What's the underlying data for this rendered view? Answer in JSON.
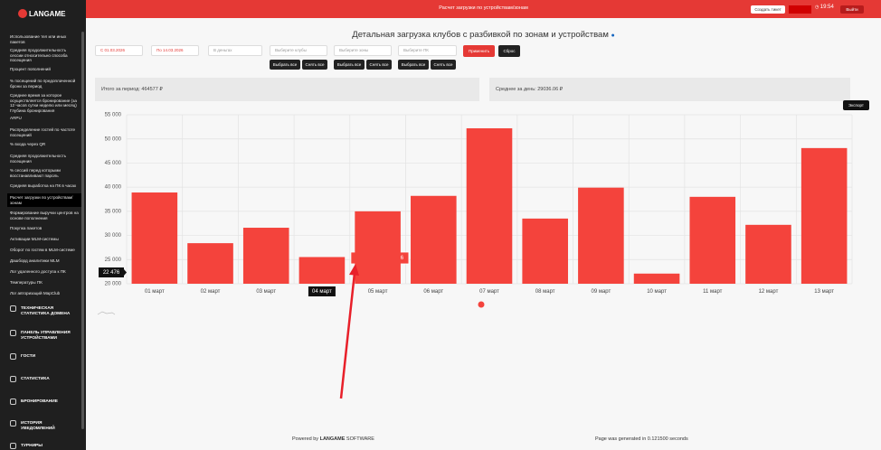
{
  "sidebar": {
    "brand": "LANGAME",
    "reports": [
      "Использование тел или иных пакетов",
      "Средняя продолжительность сессии относительно способа посещения",
      "Процент пополнений",
      "% посещений по предоплаченной брони за период",
      "Среднее время за которое осуществляется бронирование (за 12 часов сутки неделю или месяц) Глубина бронирования",
      "ARPU",
      "Распределение гостей по частоте посещений",
      "% входа через QR",
      "Средняя продолжительность посещения",
      "% сессий перед которыми восстанавливают пароль",
      "Средняя выработка на ПК в часах",
      "Расчет загрузки по устройствам/зонам",
      "Формирование выручки центров на основе пополнения",
      "Покупка пакетов",
      "Активации MLM-системы",
      "Оборот по гостям в MLM-системе",
      "Дашборд аналитики MLM",
      "Лог удаленного доступа к ПК",
      "Температуры ПК",
      "Лог авторизаций MapClub"
    ],
    "active": 11,
    "sections": [
      "ТЕХНИЧЕСКАЯ СТАТИСТИКА ДОМЕНА",
      "ПАНЕЛЬ УПРАВЛЕНИЯ УСТРОЙСТВАМИ",
      "ГОСТИ",
      "СТАТИСТИКА",
      "БРОНИРОВАНИЕ",
      "ИСТОРИЯ УВЕДОМЛЕНИЙ",
      "ТУРНИРЫ"
    ]
  },
  "header": {
    "title": "Расчет загрузки по устройствам/зонам",
    "ticket": "Создать тикет",
    "time": "19:54",
    "logout": "Выйти"
  },
  "page_title": "Детальная загрузка клубов с разбивкой по зонам и устройствам",
  "filters": {
    "date_from": "С 01.03.2026",
    "date_to": "По 14.03.2026",
    "money": "В деньгах",
    "clubs": "Выберите клубы",
    "zones": "Выберите зоны",
    "pcs": "Выберите ПК",
    "apply": "Применить",
    "reset": "Сброс",
    "select_all": "Выбрать все",
    "clear_all": "Снять все"
  },
  "summary": {
    "total": "Итого за период: 464577 ₽",
    "average": "Среднее за день: 29036.06 ₽",
    "export": "Экспорт"
  },
  "chart_data": {
    "type": "bar",
    "color": "#f4433c",
    "categories": [
      "01 март",
      "02 март",
      "03 март",
      "04 март",
      "05 март",
      "06 март",
      "07 март",
      "08 март",
      "09 март",
      "10 март",
      "11 март",
      "12 март",
      "13 март"
    ],
    "values": [
      38900,
      28400,
      31600,
      25526,
      35000,
      38200,
      52200,
      33500,
      39900,
      22100,
      38000,
      32200,
      48100
    ],
    "ylim": [
      20000,
      55000
    ],
    "yticks": [
      {
        "value": 20000,
        "label": "20 000"
      },
      {
        "value": 25000,
        "label": "25 000"
      },
      {
        "value": 30000,
        "label": "30 000"
      },
      {
        "value": 35000,
        "label": "35 000"
      },
      {
        "value": 40000,
        "label": "40 000"
      },
      {
        "value": 45000,
        "label": "45 000"
      },
      {
        "value": 50000,
        "label": "50 000"
      },
      {
        "value": 55000,
        "label": "55 000"
      }
    ],
    "grid": true,
    "highlight": 3,
    "tooltip": "2026-03-04: 25 526",
    "crosshair_label": "22 476"
  },
  "footer": {
    "powered": "Powered by",
    "brand": "LANGAME",
    "software": "SOFTWARE",
    "generated": "Page was generated in 0.121500 seconds"
  }
}
